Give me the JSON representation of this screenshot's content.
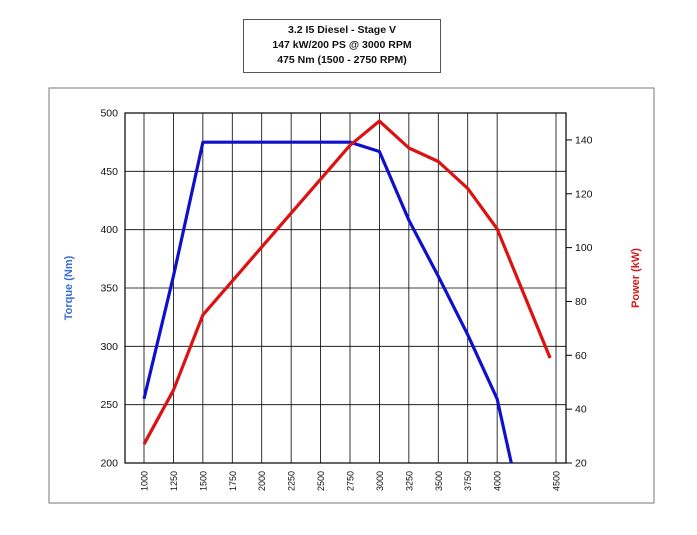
{
  "chart_data": {
    "type": "line",
    "title_lines": [
      "3.2 I5 Diesel - Stage V",
      "147 kW/200 PS @ 3000 RPM",
      "475 Nm (1500 - 2750 RPM)"
    ],
    "xlabel": "",
    "ylabel_left": "Torque (Nm)",
    "ylabel_right": "Power (kW)",
    "x_ticks": [
      1000,
      1250,
      1500,
      1750,
      2000,
      2250,
      2500,
      2750,
      3000,
      3250,
      3500,
      3750,
      4000,
      4500
    ],
    "xlim": [
      1000,
      4500
    ],
    "ylim_left": [
      200,
      500
    ],
    "y_ticks_left": [
      200,
      250,
      300,
      350,
      400,
      450,
      500
    ],
    "ylim_right": [
      20,
      150
    ],
    "y_ticks_right": [
      20,
      40,
      60,
      80,
      100,
      120,
      140
    ],
    "grid": true,
    "series": [
      {
        "name": "Torque (Nm)",
        "axis": "left",
        "color": "#1010cc",
        "x": [
          1000,
          1250,
          1500,
          2750,
          3000,
          3250,
          3500,
          3750,
          4000,
          4120
        ],
        "y": [
          255,
          360,
          475,
          475,
          467,
          408,
          360,
          310,
          255,
          200
        ]
      },
      {
        "name": "Power (kW)",
        "axis": "right",
        "color": "#dd1111",
        "x": [
          1000,
          1250,
          1500,
          2750,
          3000,
          3250,
          3500,
          3750,
          4000,
          4450
        ],
        "y": [
          27,
          47,
          75,
          138,
          147,
          137,
          132,
          122,
          107,
          59
        ]
      }
    ]
  }
}
